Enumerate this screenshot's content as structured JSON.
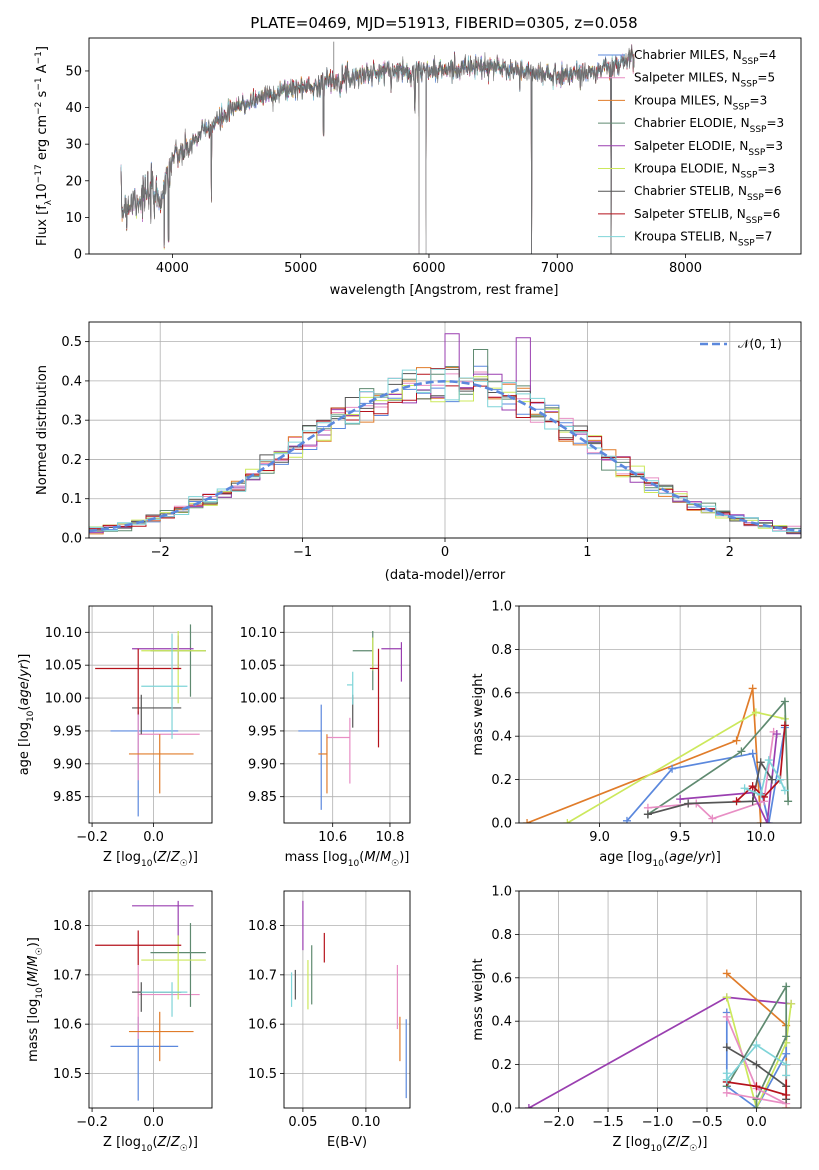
{
  "colors": {
    "chabrier_miles": "#5b88dd",
    "salpeter_miles": "#e88ec4",
    "kroupa_miles": "#e07c2a",
    "chabrier_elodie": "#5f8a70",
    "salpeter_elodie": "#9a3fb0",
    "kroupa_elodie": "#cce85c",
    "chabrier_stelib": "#555555",
    "salpeter_stelib": "#b5121b",
    "kroupa_stelib": "#7fd4d8",
    "normal_curve": "#5b88dd"
  },
  "chart_data": [
    {
      "id": "spectrum",
      "type": "line",
      "title": "PLATE=0469, MJD=51913, FIBERID=0305, z=0.058",
      "xlabel": "wavelength [Angstrom, rest frame]",
      "ylabel": "Flux [f_λ10^-17 erg cm^-2 s^-1 A^-1]",
      "xlim": [
        3350,
        8900
      ],
      "ylim": [
        0,
        59
      ],
      "xticks": [
        "4000",
        "5000",
        "6000",
        "7000",
        "8000"
      ],
      "yticks": [
        "0",
        "10",
        "20",
        "30",
        "40",
        "50"
      ],
      "legend_position": "right",
      "series": [
        {
          "name": "Chabrier MILES, N_SSP=4"
        },
        {
          "name": "Salpeter MILES, N_SSP=5"
        },
        {
          "name": "Kroupa MILES, N_SSP=3"
        },
        {
          "name": "Chabrier ELODIE, N_SSP=3"
        },
        {
          "name": "Salpeter ELODIE, N_SSP=3"
        },
        {
          "name": "Kroupa ELODIE, N_SSP=3"
        },
        {
          "name": "Chabrier STELIB, N_SSP=6"
        },
        {
          "name": "Salpeter STELIB, N_SSP=6"
        },
        {
          "name": "Kroupa STELIB, N_SSP=7"
        }
      ],
      "continuum": {
        "x": [
          3600,
          3700,
          3800,
          3900,
          4000,
          4100,
          4200,
          4300,
          4500,
          4700,
          4900,
          5100,
          5300,
          5500,
          5700,
          5900,
          6100,
          6300,
          6500,
          6700,
          6900,
          7100,
          7300,
          7500,
          7600
        ],
        "y": [
          12,
          15,
          16,
          15,
          26,
          28,
          32,
          35,
          40,
          43,
          45,
          46,
          48,
          49,
          50,
          50,
          50,
          51,
          51,
          50,
          49,
          49,
          50,
          52,
          54
        ]
      },
      "dips": [
        {
          "x": 3935,
          "y": 2
        },
        {
          "x": 3970,
          "y": 4
        },
        {
          "x": 4305,
          "y": 15
        },
        {
          "x": 5178,
          "y": 33
        },
        {
          "x": 5890,
          "y": 40
        },
        {
          "x": 5925,
          "y": 0
        },
        {
          "x": 5975,
          "y": 0
        },
        {
          "x": 6800,
          "y": 0
        },
        {
          "x": 7420,
          "y": 0
        }
      ]
    },
    {
      "id": "residuals",
      "type": "line",
      "xlabel": "(data-model)/error",
      "ylabel": "Normed distribution",
      "xlim": [
        -2.5,
        2.5
      ],
      "ylim": [
        0,
        0.55
      ],
      "xticks": [
        "−2",
        "−1",
        "0",
        "1",
        "2"
      ],
      "yticks": [
        "0.0",
        "0.1",
        "0.2",
        "0.3",
        "0.4",
        "0.5"
      ],
      "legend": "𝒩(0, 1)",
      "legend_position": "top-right",
      "bin_width": 0.1,
      "notable_bins": [
        {
          "x": 0.0,
          "y": 0.52
        },
        {
          "x": 0.5,
          "y": 0.51
        },
        {
          "x": 0.2,
          "y": 0.48
        }
      ]
    },
    {
      "id": "age-vs-Z",
      "type": "scatter",
      "xlabel": "Z [log10(Z/Z☉)]",
      "ylabel": "age [log10(age/yr)]",
      "xlim": [
        -0.21,
        0.19
      ],
      "ylim": [
        9.81,
        10.14
      ],
      "xticks": [
        "−0.2",
        "0.0"
      ],
      "yticks": [
        "9.85",
        "9.90",
        "9.95",
        "10.00",
        "10.05",
        "10.10"
      ],
      "points": [
        {
          "series": "chabrier_miles",
          "x": -0.05,
          "y": 9.95,
          "xerr": [
            0.09,
            0.13
          ],
          "yerr": [
            0.13,
            0.03
          ]
        },
        {
          "series": "salpeter_miles",
          "x": -0.05,
          "y": 9.945,
          "xerr": [
            0.0,
            0.2
          ],
          "yerr": [
            0.07,
            0.03
          ]
        },
        {
          "series": "kroupa_miles",
          "x": 0.02,
          "y": 9.915,
          "xerr": [
            0.1,
            0.11
          ],
          "yerr": [
            0.06,
            0.03
          ]
        },
        {
          "series": "chabrier_elodie",
          "x": 0.12,
          "y": 10.072,
          "xerr": [
            0.13,
            0.05
          ],
          "yerr": [
            0.07,
            0.04
          ]
        },
        {
          "series": "salpeter_elodie",
          "x": 0.08,
          "y": 10.075,
          "xerr": [
            0.15,
            0.05
          ],
          "yerr": [
            0.03,
            0.02
          ]
        },
        {
          "series": "kroupa_elodie",
          "x": 0.08,
          "y": 10.072,
          "xerr": [
            0.12,
            0.09
          ],
          "yerr": [
            0.08,
            0.03
          ]
        },
        {
          "series": "chabrier_stelib",
          "x": -0.04,
          "y": 9.985,
          "xerr": [
            0.03,
            0.13
          ],
          "yerr": [
            0.04,
            0.02
          ]
        },
        {
          "series": "salpeter_stelib",
          "x": -0.05,
          "y": 10.045,
          "xerr": [
            0.14,
            0.14
          ],
          "yerr": [
            0.07,
            0.03
          ]
        },
        {
          "series": "kroupa_stelib",
          "x": 0.06,
          "y": 10.018,
          "xerr": [
            0.1,
            0.05
          ],
          "yerr": [
            0.08,
            0.08
          ]
        }
      ]
    },
    {
      "id": "age-vs-mass",
      "type": "scatter",
      "xlabel": "mass [log10(M/M☉)]",
      "xlim": [
        10.43,
        10.87
      ],
      "ylim": [
        9.81,
        10.14
      ],
      "xticks": [
        "10.6",
        "10.8"
      ],
      "yticks": [
        "9.85",
        "9.90",
        "9.95",
        "10.00",
        "10.05",
        "10.10"
      ],
      "points": [
        {
          "series": "chabrier_miles",
          "x": 10.56,
          "y": 9.95,
          "xerr": [
            0.08,
            0.0
          ],
          "yerr": [
            0.12,
            0.04
          ]
        },
        {
          "series": "salpeter_miles",
          "x": 10.66,
          "y": 9.94,
          "xerr": [
            0.08,
            0.0
          ],
          "yerr": [
            0.07,
            0.03
          ]
        },
        {
          "series": "kroupa_miles",
          "x": 10.58,
          "y": 9.915,
          "xerr": [
            0.03,
            0.0
          ],
          "yerr": [
            0.06,
            0.03
          ]
        },
        {
          "series": "chabrier_elodie",
          "x": 10.74,
          "y": 10.072,
          "xerr": [
            0.07,
            0.0
          ],
          "yerr": [
            0.06,
            0.03
          ]
        },
        {
          "series": "salpeter_elodie",
          "x": 10.84,
          "y": 10.075,
          "xerr": [
            0.07,
            0.0
          ],
          "yerr": [
            0.05,
            0.01
          ]
        },
        {
          "series": "kroupa_elodie",
          "x": 10.74,
          "y": 10.072,
          "xerr": [
            0.0,
            0.0
          ],
          "yerr": [
            0.03,
            0.02
          ]
        },
        {
          "series": "chabrier_stelib",
          "x": 10.67,
          "y": 9.985,
          "xerr": [
            0.0,
            0.0
          ],
          "yerr": [
            0.03,
            0.02
          ]
        },
        {
          "series": "salpeter_stelib",
          "x": 10.76,
          "y": 10.045,
          "xerr": [
            0.03,
            0.0
          ],
          "yerr": [
            0.12,
            0.03
          ]
        },
        {
          "series": "kroupa_stelib",
          "x": 10.67,
          "y": 10.02,
          "xerr": [
            0.02,
            0.0
          ],
          "yerr": [
            0.03,
            0.02
          ]
        }
      ]
    },
    {
      "id": "weight-vs-age",
      "type": "line",
      "xlabel": "age [log10(age/yr)]",
      "ylabel": "mass weight",
      "xlim": [
        8.5,
        10.25
      ],
      "ylim": [
        0,
        1.0
      ],
      "xticks": [
        "9.0",
        "9.5",
        "10.0"
      ],
      "yticks": [
        "0.0",
        "0.2",
        "0.4",
        "0.6",
        "0.8",
        "1.0"
      ],
      "series": [
        {
          "color": "kroupa_miles",
          "x": [
            8.55,
            9.85,
            9.95,
            10.0
          ],
          "y": [
            0.0,
            0.38,
            0.62,
            0.0
          ]
        },
        {
          "color": "chabrier_miles",
          "x": [
            9.17,
            9.45,
            9.95,
            10.05,
            10.15
          ],
          "y": [
            0.01,
            0.25,
            0.32,
            0.0,
            0.44
          ]
        },
        {
          "color": "kroupa_elodie",
          "x": [
            8.8,
            9.97,
            10.15
          ],
          "y": [
            0.0,
            0.51,
            0.48
          ]
        },
        {
          "color": "chabrier_elodie",
          "x": [
            9.3,
            9.88,
            10.15,
            10.17
          ],
          "y": [
            0.04,
            0.33,
            0.56,
            0.1
          ]
        },
        {
          "color": "salpeter_miles",
          "x": [
            9.3,
            9.6,
            9.7,
            10.02,
            10.08
          ],
          "y": [
            0.07,
            0.09,
            0.02,
            0.1,
            0.42
          ]
        },
        {
          "color": "salpeter_elodie",
          "x": [
            9.5,
            9.95,
            10.04,
            10.1
          ],
          "y": [
            0.11,
            0.14,
            0.0,
            0.41
          ]
        },
        {
          "color": "chabrier_stelib",
          "x": [
            9.3,
            9.55,
            9.95,
            10.0,
            10.07
          ],
          "y": [
            0.04,
            0.09,
            0.1,
            0.28,
            0.2
          ]
        },
        {
          "color": "salpeter_stelib",
          "x": [
            9.85,
            9.95,
            10.02,
            10.12,
            10.15
          ],
          "y": [
            0.1,
            0.17,
            0.12,
            0.2,
            0.45
          ]
        },
        {
          "color": "kroupa_stelib",
          "x": [
            9.9,
            10.0,
            10.05,
            10.12,
            10.15
          ],
          "y": [
            0.16,
            0.13,
            0.29,
            0.2,
            0.15
          ]
        }
      ]
    },
    {
      "id": "mass-vs-Z",
      "type": "scatter",
      "xlabel": "Z [log10(Z/Z☉)]",
      "ylabel": "mass [log10(M/M☉)]",
      "xlim": [
        -0.21,
        0.19
      ],
      "ylim": [
        10.43,
        10.87
      ],
      "xticks": [
        "−0.2",
        "0.0"
      ],
      "yticks": [
        "10.5",
        "10.6",
        "10.7",
        "10.8"
      ],
      "points": [
        {
          "series": "chabrier_miles",
          "x": -0.05,
          "y": 10.555,
          "xerr": [
            0.09,
            0.13
          ],
          "yerr": [
            0.11,
            0.06
          ]
        },
        {
          "series": "salpeter_miles",
          "x": -0.05,
          "y": 10.66,
          "xerr": [
            0.0,
            0.2
          ],
          "yerr": [
            0.09,
            0.06
          ]
        },
        {
          "series": "kroupa_miles",
          "x": 0.02,
          "y": 10.585,
          "xerr": [
            0.1,
            0.11
          ],
          "yerr": [
            0.06,
            0.04
          ]
        },
        {
          "series": "chabrier_elodie",
          "x": 0.12,
          "y": 10.745,
          "xerr": [
            0.13,
            0.05
          ],
          "yerr": [
            0.11,
            0.06
          ]
        },
        {
          "series": "salpeter_elodie",
          "x": 0.08,
          "y": 10.84,
          "xerr": [
            0.15,
            0.05
          ],
          "yerr": [
            0.08,
            0.01
          ]
        },
        {
          "series": "kroupa_elodie",
          "x": 0.08,
          "y": 10.73,
          "xerr": [
            0.12,
            0.09
          ],
          "yerr": [
            0.08,
            0.05
          ]
        },
        {
          "series": "chabrier_stelib",
          "x": -0.04,
          "y": 10.665,
          "xerr": [
            0.03,
            0.13
          ],
          "yerr": [
            0.04,
            0.02
          ]
        },
        {
          "series": "salpeter_stelib",
          "x": -0.05,
          "y": 10.76,
          "xerr": [
            0.14,
            0.14
          ],
          "yerr": [
            0.04,
            0.03
          ]
        },
        {
          "series": "kroupa_stelib",
          "x": 0.06,
          "y": 10.665,
          "xerr": [
            0.1,
            0.05
          ],
          "yerr": [
            0.05,
            0.02
          ]
        }
      ]
    },
    {
      "id": "mass-vs-EBV",
      "type": "scatter",
      "xlabel": "E(B-V)",
      "xlim": [
        0.035,
        0.135
      ],
      "ylim": [
        10.43,
        10.87
      ],
      "xticks": [
        "0.05",
        "0.10"
      ],
      "yticks": [
        "10.5",
        "10.6",
        "10.7",
        "10.8"
      ],
      "points": [
        {
          "series": "chabrier_miles",
          "x": 0.132,
          "y": 10.56,
          "yerr": [
            0.11,
            0.05
          ]
        },
        {
          "series": "salpeter_miles",
          "x": 0.125,
          "y": 10.66,
          "yerr": [
            0.07,
            0.06
          ]
        },
        {
          "series": "kroupa_miles",
          "x": 0.127,
          "y": 10.585,
          "yerr": [
            0.06,
            0.03
          ]
        },
        {
          "series": "chabrier_elodie",
          "x": 0.057,
          "y": 10.7,
          "yerr": [
            0.06,
            0.06
          ]
        },
        {
          "series": "salpeter_elodie",
          "x": 0.05,
          "y": 10.8,
          "yerr": [
            0.05,
            0.05
          ]
        },
        {
          "series": "kroupa_elodie",
          "x": 0.054,
          "y": 10.68,
          "yerr": [
            0.05,
            0.05
          ]
        },
        {
          "series": "chabrier_stelib",
          "x": 0.044,
          "y": 10.69,
          "yerr": [
            0.04,
            0.02
          ]
        },
        {
          "series": "salpeter_stelib",
          "x": 0.067,
          "y": 10.755,
          "yerr": [
            0.03,
            0.03
          ]
        },
        {
          "series": "kroupa_stelib",
          "x": 0.041,
          "y": 10.675,
          "yerr": [
            0.04,
            0.03
          ]
        }
      ]
    },
    {
      "id": "weight-vs-Z",
      "type": "line",
      "xlabel": "Z [log10(Z/Z☉)]",
      "ylabel": "mass weight",
      "xlim": [
        -2.4,
        0.45
      ],
      "ylim": [
        0,
        1.0
      ],
      "xticks": [
        "−2.0",
        "−1.5",
        "−1.0",
        "−0.5",
        "0.0"
      ],
      "yticks": [
        "0.0",
        "0.2",
        "0.4",
        "0.6",
        "0.8",
        "1.0"
      ],
      "series": [
        {
          "color": "salpeter_elodie",
          "x": [
            -2.3,
            -0.3,
            0.35
          ],
          "y": [
            0.0,
            0.51,
            0.48
          ]
        },
        {
          "color": "kroupa_miles",
          "x": [
            -0.3,
            0.3,
            0.3
          ],
          "y": [
            0.62,
            0.38,
            0.0
          ]
        },
        {
          "color": "chabrier_miles",
          "x": [
            -0.3,
            -0.3,
            0.0,
            0.3,
            0.3
          ],
          "y": [
            0.44,
            0.1,
            0.0,
            0.25,
            0.3
          ]
        },
        {
          "color": "kroupa_elodie",
          "x": [
            -0.3,
            0.0,
            0.3,
            0.35
          ],
          "y": [
            0.51,
            0.0,
            0.3,
            0.48
          ]
        },
        {
          "color": "chabrier_elodie",
          "x": [
            -0.3,
            0.3,
            0.3,
            0.0,
            0.0
          ],
          "y": [
            0.1,
            0.56,
            0.33,
            0.04,
            0.0
          ]
        },
        {
          "color": "salpeter_miles",
          "x": [
            -0.3,
            0.0,
            0.3,
            -0.3
          ],
          "y": [
            0.42,
            0.09,
            0.02,
            0.07
          ]
        },
        {
          "color": "chabrier_stelib",
          "x": [
            -0.3,
            0.0,
            0.3,
            0.3
          ],
          "y": [
            0.28,
            0.2,
            0.1,
            0.04
          ]
        },
        {
          "color": "salpeter_stelib",
          "x": [
            -0.3,
            0.0,
            0.3,
            0.3
          ],
          "y": [
            0.12,
            0.1,
            0.06,
            0.2
          ]
        },
        {
          "color": "kroupa_stelib",
          "x": [
            -0.3,
            -0.3,
            0.0,
            0.3,
            0.3
          ],
          "y": [
            0.16,
            0.13,
            0.29,
            0.2,
            0.15
          ]
        }
      ]
    }
  ]
}
